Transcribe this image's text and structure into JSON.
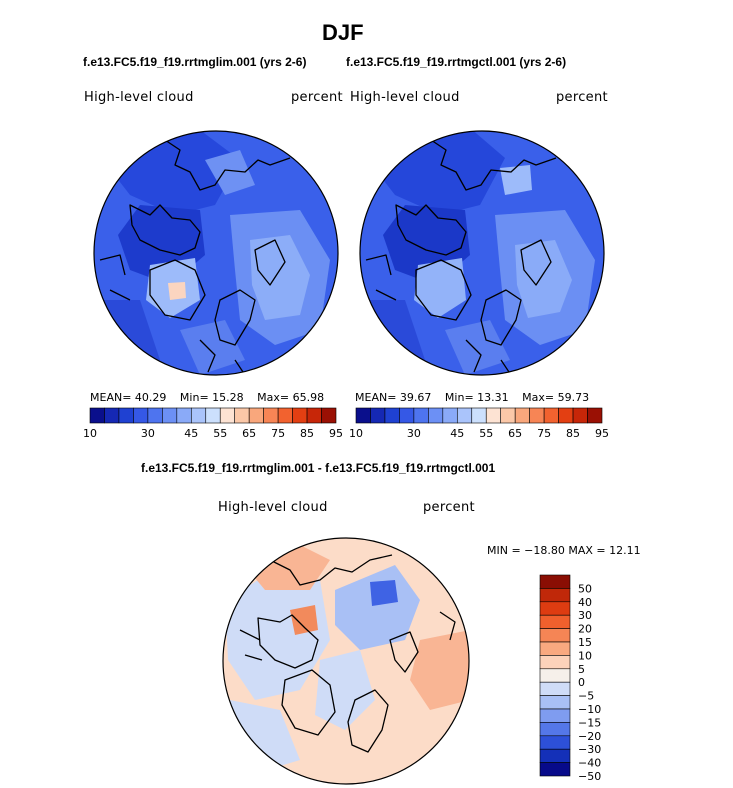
{
  "chart_data": [
    {
      "type": "heatmap",
      "projection": "north-polar-stereographic",
      "season": "DJF",
      "case": "f.e13.FC5.f19_f19.rrtmglim.001 (yrs 2-6)",
      "variable": "High-level cloud",
      "units": "percent",
      "stats": {
        "mean_label": "MEAN=",
        "mean": "40.29",
        "min_label": "Min=",
        "min": "15.28",
        "max_label": "Max=",
        "max": "65.98"
      },
      "colorbar": {
        "levels": [
          10,
          15,
          20,
          25,
          30,
          35,
          40,
          45,
          50,
          55,
          60,
          65,
          70,
          75,
          80,
          85,
          90,
          95
        ],
        "tick_labels": [
          "10",
          "30",
          "45",
          "55",
          "65",
          "75",
          "85",
          "95"
        ]
      }
    },
    {
      "type": "heatmap",
      "projection": "north-polar-stereographic",
      "season": "DJF",
      "case": "f.e13.FC5.f19_f19.rrtmgctl.001 (yrs 2-6)",
      "variable": "High-level cloud",
      "units": "percent",
      "stats": {
        "mean_label": "MEAN=",
        "mean": "39.67",
        "min_label": "Min=",
        "min": "13.31",
        "max_label": "Max=",
        "max": "59.73"
      },
      "colorbar": {
        "levels": [
          10,
          15,
          20,
          25,
          30,
          35,
          40,
          45,
          50,
          55,
          60,
          65,
          70,
          75,
          80,
          85,
          90,
          95
        ],
        "tick_labels": [
          "10",
          "30",
          "45",
          "55",
          "65",
          "75",
          "85",
          "95"
        ]
      }
    },
    {
      "type": "heatmap",
      "projection": "north-polar-stereographic",
      "title": "f.e13.FC5.f19_f19.rrtmglim.001 - f.e13.FC5.f19_f19.rrtmgctl.001",
      "variable": "High-level cloud",
      "units": "percent",
      "stats_text": "MIN = −18.80 MAX =  12.11",
      "stats": {
        "min": -18.8,
        "max": 12.11
      },
      "colorbar": {
        "levels": [
          -50,
          -40,
          -30,
          -20,
          -15,
          -10,
          -5,
          0,
          5,
          10,
          15,
          20,
          30,
          40,
          50
        ],
        "tick_labels": [
          "50",
          "40",
          "30",
          "20",
          "15",
          "10",
          "5",
          "0",
          "−5",
          "−10",
          "−15",
          "−20",
          "−30",
          "−40",
          "−50"
        ]
      }
    }
  ],
  "page": {
    "title": "DJF"
  },
  "colors": {
    "abs_palette": [
      "#0a0f8c",
      "#1528b4",
      "#1f41d2",
      "#3558e6",
      "#4e74ef",
      "#6c90f5",
      "#8aaaf8",
      "#aac4fb",
      "#cce0fd",
      "#fde3d3",
      "#fbc8a8",
      "#f9a77c",
      "#f78555",
      "#f2622f",
      "#e33f12",
      "#c72608",
      "#9a1004"
    ],
    "diff_palette": [
      "#8a0e04",
      "#c02809",
      "#de3c11",
      "#f0602d",
      "#f58555",
      "#f9a980",
      "#fcd2ba",
      "#f6f0ea",
      "#cfdcf7",
      "#a9c0f5",
      "#7f9cf0",
      "#5477e8",
      "#2d50d8",
      "#1430b8",
      "#070a8a"
    ]
  }
}
